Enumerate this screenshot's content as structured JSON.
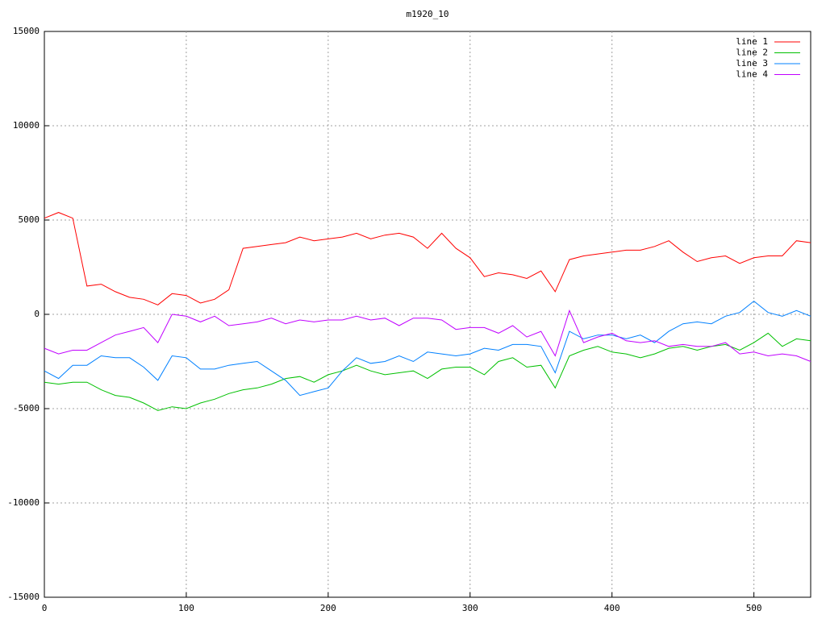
{
  "chart_data": {
    "type": "line",
    "title": "m1920_10",
    "x": [
      0,
      10,
      20,
      30,
      40,
      50,
      60,
      70,
      80,
      90,
      100,
      110,
      120,
      130,
      140,
      150,
      160,
      170,
      180,
      190,
      200,
      210,
      220,
      230,
      240,
      250,
      260,
      270,
      280,
      290,
      300,
      310,
      320,
      330,
      340,
      350,
      360,
      370,
      380,
      390,
      400,
      410,
      420,
      430,
      440,
      450,
      460,
      470,
      480,
      490,
      500,
      510,
      520,
      530,
      540
    ],
    "series": [
      {
        "name": "line 1",
        "color": "#ff0000",
        "values": [
          5100,
          5400,
          5100,
          1500,
          1600,
          1200,
          900,
          800,
          500,
          1100,
          1000,
          600,
          800,
          1300,
          3500,
          3600,
          3700,
          3800,
          4100,
          3900,
          4000,
          4100,
          4300,
          4000,
          4200,
          4300,
          4100,
          3500,
          4300,
          3500,
          3000,
          2000,
          2200,
          2100,
          1900,
          2300,
          1200,
          2900,
          3100,
          3200,
          3300,
          3400,
          3400,
          3600,
          3900,
          3300,
          2800,
          3000,
          3100,
          2700,
          3000,
          3100,
          3100,
          3900,
          3800
        ]
      },
      {
        "name": "line 2",
        "color": "#00c000",
        "values": [
          -3600,
          -3700,
          -3600,
          -3600,
          -4000,
          -4300,
          -4400,
          -4700,
          -5100,
          -4900,
          -5000,
          -4700,
          -4500,
          -4200,
          -4000,
          -3900,
          -3700,
          -3400,
          -3300,
          -3600,
          -3200,
          -3000,
          -2700,
          -3000,
          -3200,
          -3100,
          -3000,
          -3400,
          -2900,
          -2800,
          -2800,
          -3200,
          -2500,
          -2300,
          -2800,
          -2700,
          -3900,
          -2200,
          -1900,
          -1700,
          -2000,
          -2100,
          -2300,
          -2100,
          -1800,
          -1700,
          -1900,
          -1700,
          -1600,
          -1900,
          -1500,
          -1000,
          -1700,
          -1300,
          -1400
        ]
      },
      {
        "name": "line 3",
        "color": "#0080ff",
        "values": [
          -3000,
          -3400,
          -2700,
          -2700,
          -2200,
          -2300,
          -2300,
          -2800,
          -3500,
          -2200,
          -2300,
          -2900,
          -2900,
          -2700,
          -2600,
          -2500,
          -3000,
          -3500,
          -4300,
          -4100,
          -3900,
          -3000,
          -2300,
          -2600,
          -2500,
          -2200,
          -2500,
          -2000,
          -2100,
          -2200,
          -2100,
          -1800,
          -1900,
          -1600,
          -1600,
          -1700,
          -3100,
          -900,
          -1300,
          -1100,
          -1100,
          -1300,
          -1100,
          -1500,
          -900,
          -500,
          -400,
          -500,
          -100,
          100,
          700,
          100,
          -100,
          200,
          -100
        ]
      },
      {
        "name": "line 4",
        "color": "#c000ff",
        "values": [
          -1800,
          -2100,
          -1900,
          -1900,
          -1500,
          -1100,
          -900,
          -700,
          -1500,
          0,
          -100,
          -400,
          -100,
          -600,
          -500,
          -400,
          -200,
          -500,
          -300,
          -400,
          -300,
          -300,
          -100,
          -300,
          -200,
          -600,
          -200,
          -200,
          -300,
          -800,
          -700,
          -700,
          -1000,
          -600,
          -1200,
          -900,
          -2200,
          200,
          -1500,
          -1200,
          -1000,
          -1400,
          -1500,
          -1400,
          -1700,
          -1600,
          -1700,
          -1700,
          -1500,
          -2100,
          -2000,
          -2200,
          -2100,
          -2200,
          -2500
        ]
      }
    ],
    "xlim": [
      0,
      540
    ],
    "xticks": [
      0,
      100,
      200,
      300,
      400,
      500
    ],
    "ylim": [
      -15000,
      15000
    ],
    "yticks": [
      -15000,
      -10000,
      -5000,
      0,
      5000,
      10000,
      15000
    ],
    "grid": true,
    "legend": "top-right"
  }
}
